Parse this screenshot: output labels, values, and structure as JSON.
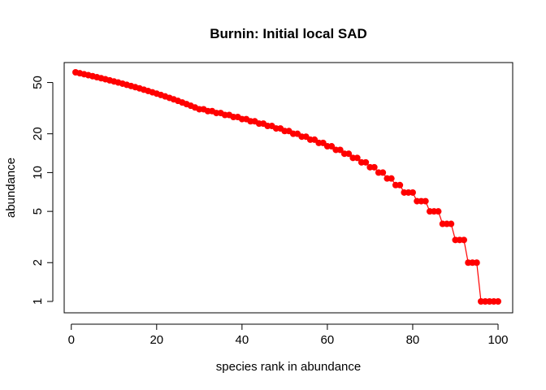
{
  "chart_data": {
    "type": "line",
    "title": "Burnin: Initial local SAD",
    "xlabel": "species rank in abundance",
    "ylabel": "abundance",
    "xlim": [
      1,
      100
    ],
    "ylim": [
      1,
      60
    ],
    "y_scale": "log",
    "x_ticks": [
      0,
      20,
      40,
      60,
      80,
      100
    ],
    "x_tick_labels": [
      "0",
      "20",
      "40",
      "60",
      "80",
      "100"
    ],
    "y_ticks": [
      1,
      2,
      5,
      10,
      20,
      50
    ],
    "y_tick_labels": [
      "1",
      "2",
      "5",
      "10",
      "20",
      "50"
    ],
    "grid": false,
    "legend": "none",
    "series": [
      {
        "color": "#ff0000",
        "marker": "filled-circle",
        "x": [
          1,
          2,
          3,
          4,
          5,
          6,
          7,
          8,
          9,
          10,
          11,
          12,
          13,
          14,
          15,
          16,
          17,
          18,
          19,
          20,
          21,
          22,
          23,
          24,
          25,
          26,
          27,
          28,
          29,
          30,
          31,
          32,
          33,
          34,
          35,
          36,
          37,
          38,
          39,
          40,
          41,
          42,
          43,
          44,
          45,
          46,
          47,
          48,
          49,
          50,
          51,
          52,
          53,
          54,
          55,
          56,
          57,
          58,
          59,
          60,
          61,
          62,
          63,
          64,
          65,
          66,
          67,
          68,
          69,
          70,
          71,
          72,
          73,
          74,
          75,
          76,
          77,
          78,
          79,
          80,
          81,
          82,
          83,
          84,
          85,
          86,
          87,
          88,
          89,
          90,
          91,
          92,
          93,
          94,
          95,
          96,
          97,
          98,
          99,
          100
        ],
        "values": [
          60,
          59,
          58,
          57,
          56,
          55,
          54,
          53,
          52,
          51,
          50,
          49,
          48,
          47,
          46,
          45,
          44,
          43,
          42,
          41,
          40,
          39,
          38,
          37,
          36,
          35,
          34,
          33,
          32,
          31,
          31,
          30,
          30,
          29,
          29,
          28,
          28,
          27,
          27,
          26,
          26,
          25,
          25,
          24,
          24,
          23,
          23,
          22,
          22,
          21,
          21,
          20,
          20,
          19,
          19,
          18,
          18,
          17,
          17,
          16,
          16,
          15,
          15,
          14,
          14,
          13,
          13,
          12,
          12,
          11,
          11,
          10,
          10,
          9,
          9,
          8,
          8,
          7,
          7,
          7,
          6,
          6,
          6,
          5,
          5,
          5,
          4,
          4,
          4,
          3,
          3,
          3,
          2,
          2,
          2,
          1,
          1,
          1,
          1,
          1
        ]
      }
    ]
  }
}
